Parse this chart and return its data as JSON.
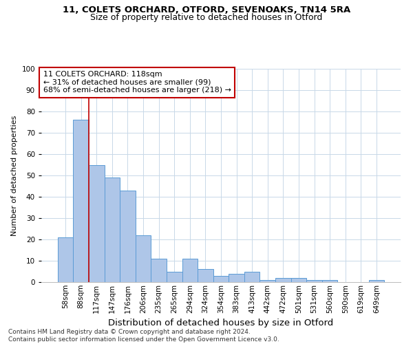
{
  "title1": "11, COLETS ORCHARD, OTFORD, SEVENOAKS, TN14 5RA",
  "title2": "Size of property relative to detached houses in Otford",
  "xlabel": "Distribution of detached houses by size in Otford",
  "ylabel": "Number of detached properties",
  "categories": [
    "58sqm",
    "88sqm",
    "117sqm",
    "147sqm",
    "176sqm",
    "206sqm",
    "235sqm",
    "265sqm",
    "294sqm",
    "324sqm",
    "354sqm",
    "383sqm",
    "413sqm",
    "442sqm",
    "472sqm",
    "501sqm",
    "531sqm",
    "560sqm",
    "590sqm",
    "619sqm",
    "649sqm"
  ],
  "values": [
    21,
    76,
    55,
    49,
    43,
    22,
    11,
    5,
    11,
    6,
    3,
    4,
    5,
    1,
    2,
    2,
    1,
    1,
    0,
    0,
    1
  ],
  "bar_color": "#aec6e8",
  "bar_edge_color": "#5b9bd5",
  "highlight_line_color": "#c00000",
  "annotation_box_text": "11 COLETS ORCHARD: 118sqm\n← 31% of detached houses are smaller (99)\n68% of semi-detached houses are larger (218) →",
  "annotation_box_color": "#c00000",
  "ylim": [
    0,
    100
  ],
  "yticks": [
    0,
    10,
    20,
    30,
    40,
    50,
    60,
    70,
    80,
    90,
    100
  ],
  "background_color": "#ffffff",
  "grid_color": "#c8d8e8",
  "footnote": "Contains HM Land Registry data © Crown copyright and database right 2024.\nContains public sector information licensed under the Open Government Licence v3.0.",
  "title1_fontsize": 9.5,
  "title2_fontsize": 9,
  "xlabel_fontsize": 9.5,
  "ylabel_fontsize": 8,
  "tick_fontsize": 7.5,
  "annot_fontsize": 8,
  "footnote_fontsize": 6.5
}
